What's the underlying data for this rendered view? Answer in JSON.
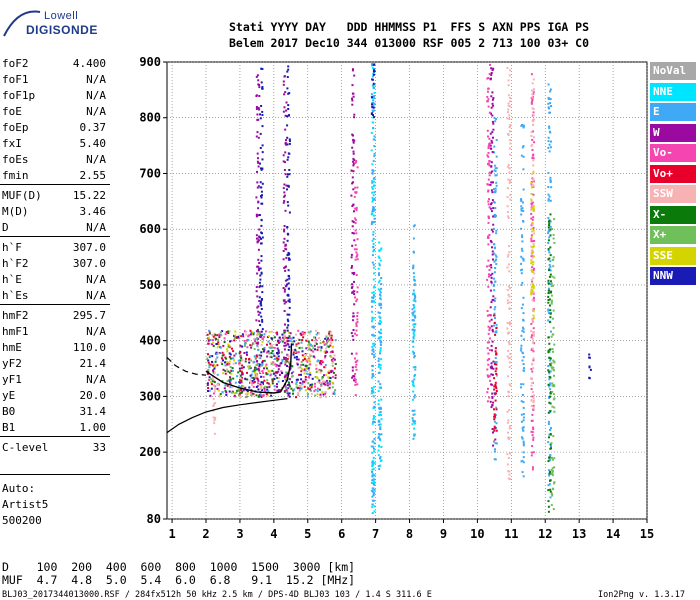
{
  "logo": {
    "top": "Lowell",
    "main": "DIGISONDE"
  },
  "header": {
    "line1": "Stati YYYY DAY   DDD HHMMSS P1  FFS S AXN PPS IGA PS",
    "line2": "Belem 2017 Dec10 344 013000 RSF 005 2 713 100 03+ C0"
  },
  "params": [
    {
      "name": "foF2",
      "value": "4.400"
    },
    {
      "name": "foF1",
      "value": "N/A"
    },
    {
      "name": "foF1p",
      "value": "N/A"
    },
    {
      "name": "foE",
      "value": "N/A"
    },
    {
      "name": "foEp",
      "value": "0.37"
    },
    {
      "name": "fxI",
      "value": "5.40"
    },
    {
      "name": "foEs",
      "value": "N/A"
    },
    {
      "name": "fmin",
      "value": "2.55"
    },
    {
      "name": "MUF(D)",
      "value": "15.22"
    },
    {
      "name": "M(D)",
      "value": "3.46"
    },
    {
      "name": "D",
      "value": "N/A"
    },
    {
      "name": "h`F",
      "value": "307.0"
    },
    {
      "name": "h`F2",
      "value": "307.0"
    },
    {
      "name": "h`E",
      "value": "N/A"
    },
    {
      "name": "h`Es",
      "value": "N/A"
    },
    {
      "name": "hmF2",
      "value": "295.7"
    },
    {
      "name": "hmF1",
      "value": "N/A"
    },
    {
      "name": "hmE",
      "value": "110.0"
    },
    {
      "name": "yF2",
      "value": "21.4"
    },
    {
      "name": "yF1",
      "value": "N/A"
    },
    {
      "name": "yE",
      "value": "20.0"
    },
    {
      "name": "B0",
      "value": "31.4"
    },
    {
      "name": "B1",
      "value": "1.00"
    },
    {
      "name": "C-level",
      "value": "33"
    }
  ],
  "auto": {
    "line1": "Auto:",
    "line2": "Artist5",
    "line3": "500200"
  },
  "legend": [
    {
      "label": "NoVal",
      "color": "#a8a8a8"
    },
    {
      "label": "NNE",
      "color": "#00e5ff"
    },
    {
      "label": "E",
      "color": "#3fa9f5"
    },
    {
      "label": "W",
      "color": "#9b0aa0"
    },
    {
      "label": "Vo-",
      "color": "#f545b0"
    },
    {
      "label": "Vo+",
      "color": "#e8002a"
    },
    {
      "label": "SSW",
      "color": "#f7b3b3"
    },
    {
      "label": "X-",
      "color": "#0a7a0a"
    },
    {
      "label": "X+",
      "color": "#6fbf5a"
    },
    {
      "label": "SSE",
      "color": "#d4d400"
    },
    {
      "label": "NNW",
      "color": "#1a1ab5"
    }
  ],
  "muf_table": {
    "line1": "D    100  200  400  600  800  1000  1500  3000 [km]",
    "line2": "MUF  4.7  4.8  5.0  5.4  6.0  6.8   9.1  15.2 [MHz]"
  },
  "footer": {
    "left": "BLJ03_2017344013000.RSF / 284fx512h 50 kHz 2.5 km / DPS-4D BLJ03 103 / 1.4 S 311.6 E",
    "right": "Ion2Png v. 1.3.17"
  },
  "chart_data": {
    "type": "scatter",
    "x_ticks": [
      "1",
      "2",
      "3",
      "4",
      "5",
      "6",
      "7",
      "8",
      "9",
      "10",
      "11",
      "12",
      "13",
      "14",
      "15"
    ],
    "y_ticks": [
      "80",
      "200",
      "300",
      "400",
      "500",
      "600",
      "700",
      "800",
      "900"
    ],
    "xlim": [
      0.85,
      15.0
    ],
    "ylim": [
      80,
      900
    ],
    "grid": true,
    "series": [
      {
        "name": "NNE",
        "columns": [
          {
            "x": 6.9,
            "y": [
              90,
              905
            ]
          },
          {
            "x": 7.1,
            "y": [
              160,
              580
            ]
          },
          {
            "x": 8.1,
            "y": [
              230,
              520
            ]
          }
        ]
      },
      {
        "name": "E",
        "columns": [
          {
            "x": 6.9,
            "y": [
              95,
              900
            ]
          },
          {
            "x": 7.1,
            "y": [
              160,
              540
            ]
          },
          {
            "x": 8.1,
            "y": [
              220,
              610
            ]
          },
          {
            "x": 10.5,
            "y": [
              180,
              820
            ]
          },
          {
            "x": 11.3,
            "y": [
              150,
              800
            ]
          },
          {
            "x": 12.1,
            "y": [
              120,
              870
            ]
          }
        ]
      },
      {
        "name": "W",
        "columns": [
          {
            "x": 3.5,
            "y": [
              320,
              880
            ]
          },
          {
            "x": 4.3,
            "y": [
              300,
              880
            ]
          },
          {
            "x": 6.3,
            "y": [
              320,
              890
            ]
          },
          {
            "x": 10.4,
            "y": [
              190,
              900
            ]
          },
          {
            "x": 4.1,
            "y": [
              310,
              420
            ]
          }
        ]
      },
      {
        "name": "Vo-",
        "columns": [
          {
            "x": 6.4,
            "y": [
              300,
              740
            ]
          },
          {
            "x": 10.3,
            "y": [
              290,
              900
            ]
          },
          {
            "x": 11.6,
            "y": [
              170,
              880
            ]
          }
        ]
      },
      {
        "name": "Vo+",
        "columns": [
          {
            "x": 10.5,
            "y": [
              200,
              450
            ]
          },
          {
            "x": 3.0,
            "y": [
              300,
              380
            ]
          }
        ]
      },
      {
        "name": "SSW",
        "columns": [
          {
            "x": 10.9,
            "y": [
              150,
              900
            ]
          },
          {
            "x": 11.6,
            "y": [
              280,
              880
            ]
          },
          {
            "x": 2.2,
            "y": [
              230,
              420
            ]
          }
        ]
      },
      {
        "name": "X-",
        "columns": [
          {
            "x": 12.1,
            "y": [
              80,
              630
            ]
          },
          {
            "x": 3.0,
            "y": [
              300,
              390
            ]
          }
        ]
      },
      {
        "name": "X+",
        "columns": [
          {
            "x": 12.2,
            "y": [
              95,
              620
            ]
          },
          {
            "x": 5.0,
            "y": [
              310,
              420
            ]
          }
        ]
      },
      {
        "name": "SSE",
        "columns": [
          {
            "x": 11.6,
            "y": [
              440,
              720
            ]
          }
        ]
      },
      {
        "name": "NNW",
        "columns": [
          {
            "x": 3.6,
            "y": [
              300,
              900
            ]
          },
          {
            "x": 4.4,
            "y": [
              300,
              900
            ]
          },
          {
            "x": 6.9,
            "y": [
              780,
              900
            ]
          },
          {
            "x": 13.3,
            "y": [
              320,
              380
            ]
          }
        ]
      }
    ],
    "trace_fx": [
      [
        2.0,
        345
      ],
      [
        2.5,
        325
      ],
      [
        3.0,
        315
      ],
      [
        3.5,
        308
      ],
      [
        4.0,
        306
      ],
      [
        4.2,
        308
      ],
      [
        4.4,
        330
      ],
      [
        4.5,
        360
      ],
      [
        4.52,
        395
      ]
    ],
    "profile_solid": [
      [
        0.85,
        235
      ],
      [
        1.2,
        250
      ],
      [
        1.6,
        262
      ],
      [
        2.0,
        272
      ],
      [
        2.5,
        280
      ],
      [
        3.0,
        285
      ],
      [
        3.5,
        289
      ],
      [
        4.0,
        293
      ],
      [
        4.4,
        296
      ]
    ],
    "profile_dashed": [
      [
        0.85,
        370
      ],
      [
        1.1,
        355
      ],
      [
        1.4,
        345
      ],
      [
        1.7,
        340
      ],
      [
        2.0,
        338
      ]
    ]
  }
}
